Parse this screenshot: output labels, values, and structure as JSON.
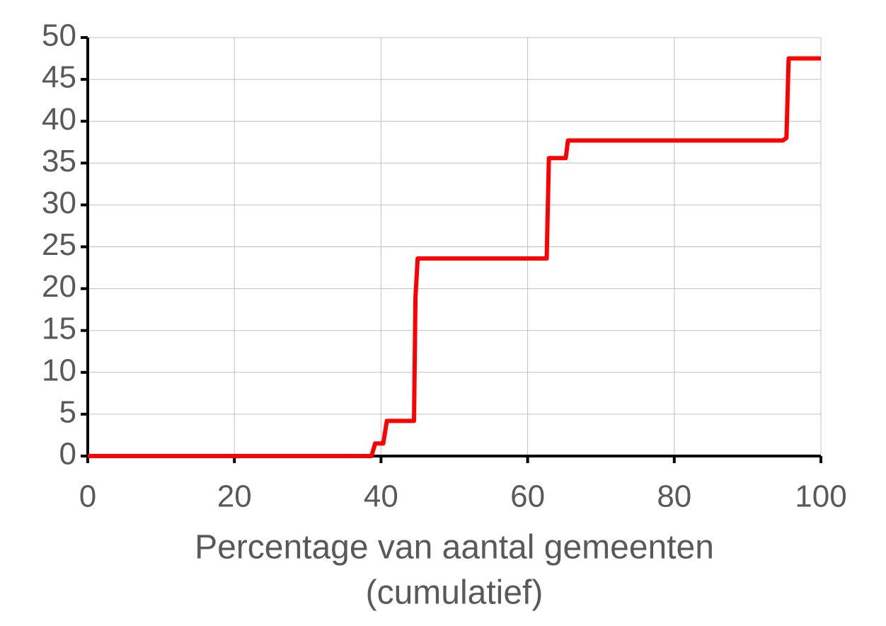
{
  "chart_data": {
    "type": "line",
    "x_label": [
      "Percentage van aantal gemeenten",
      "(cumulatief)"
    ],
    "series": [
      {
        "color": "#ff0000",
        "x": [
          0,
          38.7,
          39.2,
          40.3,
          40.8,
          44.5,
          44.7,
          45,
          62.6,
          62.9,
          65.2,
          65.5,
          94.8,
          95.3,
          95.6,
          100
        ],
        "values": [
          0,
          0,
          1.5,
          1.5,
          4.2,
          4.2,
          19,
          23.6,
          23.6,
          35.6,
          35.6,
          37.7,
          37.7,
          38,
          47.5,
          47.5
        ]
      }
    ],
    "xlim": [
      0,
      100
    ],
    "xticks": [
      0,
      20,
      40,
      60,
      80,
      100
    ],
    "ylim": [
      0,
      50
    ],
    "yticks": [
      0,
      5,
      10,
      15,
      20,
      25,
      30,
      35,
      40,
      45,
      50
    ],
    "grid": true
  }
}
